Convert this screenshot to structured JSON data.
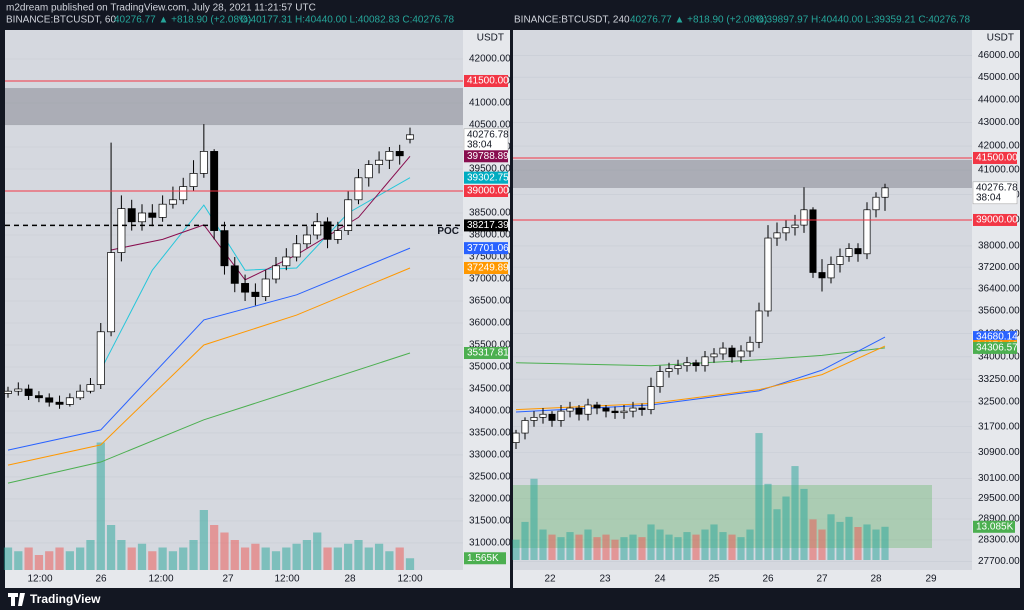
{
  "header": {
    "publisher": "m2dream published on TradingView.com, July 28, 2021 11:21:57 UTC"
  },
  "footer": {
    "brand": "TradingView"
  },
  "chart_data": [
    {
      "type": "candlestick",
      "title": "BINANCE:BTCUSDT, 60",
      "quote": "40276.77 ▲ +818.90 (+2.08%)",
      "ohlc": "O:40177.31 H:40440.00 L:40082.83 C:40276.78",
      "currency": "USDT",
      "log_scale": false,
      "ylim": [
        30386,
        42659
      ],
      "up_color": "#ffffff",
      "down_color": "#000000",
      "yticks": [
        {
          "value": 31000,
          "label": "31000.00"
        },
        {
          "value": 31500,
          "label": "31500.00"
        },
        {
          "value": 32000,
          "label": "32000.00"
        },
        {
          "value": 32500,
          "label": "32500.00"
        },
        {
          "value": 33000,
          "label": "33000.00"
        },
        {
          "value": 33500,
          "label": "33500.00"
        },
        {
          "value": 34000,
          "label": "34000.00"
        },
        {
          "value": 34500,
          "label": "34500.00"
        },
        {
          "value": 35000,
          "label": "35000.00"
        },
        {
          "value": 35500,
          "label": "35500.00"
        },
        {
          "value": 36000,
          "label": "36000.00"
        },
        {
          "value": 36500,
          "label": "36500.00"
        },
        {
          "value": 37000,
          "label": "37000.00"
        },
        {
          "value": 37500,
          "label": "37500.00"
        },
        {
          "value": 38000,
          "label": "38000.00"
        },
        {
          "value": 38500,
          "label": "38500.00"
        },
        {
          "value": 39000,
          "label": "39000.00"
        },
        {
          "value": 39500,
          "label": "39500.00"
        },
        {
          "value": 40000,
          "label": "40000.00"
        },
        {
          "value": 40500,
          "label": "40500.00"
        },
        {
          "value": 41000,
          "label": "41000.00"
        },
        {
          "value": 41500,
          "label": "41500.00"
        },
        {
          "value": 42000,
          "label": "42000.00"
        }
      ],
      "x_labels": [
        "12:00",
        "26",
        "12:00",
        "27",
        "12:00",
        "28",
        "12:00"
      ],
      "zone": [
        40500,
        41340
      ],
      "candles": {
        "open": [
          34400,
          34450,
          34500,
          34350,
          34300,
          34200,
          34150,
          34300,
          34450,
          34600,
          35800,
          37600,
          38600,
          38300,
          38500,
          38400,
          38700,
          38800,
          39100,
          39400,
          39900,
          38100,
          37300,
          36900,
          36700,
          36600,
          37000,
          37300,
          37500,
          37800,
          38000,
          38300,
          37900,
          38100,
          38800,
          39300,
          39600,
          39700,
          39900,
          40177.31
        ],
        "high": [
          34550,
          34650,
          34600,
          34450,
          34400,
          34350,
          34400,
          34600,
          34750,
          36000,
          40100,
          38900,
          38800,
          38700,
          38700,
          38900,
          39100,
          39300,
          39700,
          40520,
          39950,
          38300,
          37500,
          37100,
          36900,
          37200,
          37500,
          37700,
          38000,
          38200,
          38500,
          38400,
          38300,
          39000,
          39500,
          39700,
          39900,
          40000,
          40050,
          40440
        ],
        "low": [
          34300,
          34350,
          34250,
          34200,
          34100,
          34050,
          34100,
          34250,
          34400,
          34500,
          35700,
          37400,
          38100,
          38100,
          38200,
          38300,
          38600,
          38700,
          39000,
          39300,
          37900,
          37100,
          36700,
          36500,
          36400,
          36500,
          36900,
          37200,
          37400,
          37700,
          37900,
          37700,
          37800,
          38000,
          38700,
          39100,
          39400,
          39500,
          39600,
          40082.83
        ],
        "close": [
          34450,
          34500,
          34350,
          34300,
          34200,
          34150,
          34300,
          34450,
          34600,
          35800,
          37600,
          38600,
          38300,
          38500,
          38400,
          38700,
          38800,
          39100,
          39400,
          39900,
          38100,
          37300,
          36900,
          36700,
          36600,
          37000,
          37300,
          37500,
          37800,
          38000,
          38300,
          37900,
          38100,
          38800,
          39300,
          39600,
          39700,
          39900,
          39800,
          40276.78
        ]
      },
      "lines": [
        {
          "color": "#26c6da",
          "x": [
            9,
            14,
            19,
            23,
            28,
            33,
            39
          ],
          "values": [
            34930,
            37200,
            38680,
            37200,
            37250,
            38500,
            39303
          ]
        },
        {
          "color": "#880e4f",
          "x": [
            10,
            15,
            19,
            23,
            28,
            34,
            39
          ],
          "values": [
            37660,
            37900,
            38230,
            36980,
            37550,
            38400,
            39789
          ]
        },
        {
          "color": "#2962ff",
          "x": [
            0,
            9,
            19,
            28,
            39
          ],
          "values": [
            33110,
            33570,
            36070,
            36640,
            37701
          ]
        },
        {
          "color": "#ff9800",
          "x": [
            0,
            9,
            19,
            28,
            39
          ],
          "values": [
            32770,
            33230,
            35500,
            36180,
            37250
          ]
        },
        {
          "color": "#4caf50",
          "x": [
            0,
            9,
            19,
            28,
            39
          ],
          "values": [
            32360,
            32840,
            33800,
            34480,
            35318
          ]
        }
      ],
      "price_tags": [
        {
          "value": 41500,
          "label": "41500.00",
          "color": "#f23645",
          "line": "solid"
        },
        {
          "value": 40276.78,
          "label": "40276.78",
          "color": "#ffffff",
          "countdown": "38:04"
        },
        {
          "value": 39788.89,
          "label": "39788.89",
          "color": "#880e4f"
        },
        {
          "value": 39302.75,
          "label": "39302.75",
          "color": "#00acc1"
        },
        {
          "value": 39000,
          "label": "39000.00",
          "color": "#f23645",
          "line": "solid"
        },
        {
          "value": 38217.39,
          "label": "38217.39",
          "color": "#000000",
          "line": "dashed",
          "note": "POC"
        },
        {
          "value": 37701.06,
          "label": "37701.06",
          "color": "#2962ff"
        },
        {
          "value": 37249.89,
          "label": "37249.89",
          "color": "#ff9800"
        },
        {
          "value": 35317.81,
          "label": "35317.81",
          "color": "#4caf50"
        }
      ],
      "volume": {
        "ylim": [
          0,
          20
        ],
        "color": "#4caf50",
        "values": [
          3,
          2.5,
          3,
          2,
          2.5,
          3,
          2.5,
          3,
          4,
          17,
          6,
          4,
          3,
          3.5,
          2.5,
          3,
          2.5,
          3,
          4,
          8,
          6,
          5,
          4,
          3,
          3.5,
          3,
          2.5,
          3,
          3.5,
          4,
          5,
          3,
          3,
          3.5,
          4,
          3,
          3.5,
          2.5,
          3,
          1.565
        ],
        "value_labels": [
          null,
          null,
          null,
          null,
          null,
          null,
          null,
          null,
          null,
          null,
          null,
          null,
          null,
          null,
          null,
          null,
          null,
          null,
          null,
          null,
          null,
          null,
          null,
          null,
          null,
          null,
          null,
          null,
          null,
          null,
          null,
          null,
          null,
          null,
          null,
          null,
          null,
          null,
          null,
          "1.565K"
        ]
      }
    },
    {
      "type": "candlestick",
      "title": "BINANCE:BTCUSDT, 240",
      "quote": "40276.77 ▲ +818.90 (+2.08%)",
      "ohlc": "O:39897.97 H:40440.00 L:39359.21 C:40276.78",
      "currency": "USDT",
      "log_scale": true,
      "ylim": [
        27460,
        47180
      ],
      "up_color": "#ffffff",
      "down_color": "#000000",
      "yticks": [
        {
          "value": 46000,
          "label": "46000.00"
        },
        {
          "value": 45000,
          "label": "45000.00"
        },
        {
          "value": 44000,
          "label": "44000.00"
        },
        {
          "value": 43000,
          "label": "43000.00"
        },
        {
          "value": 42000,
          "label": "42000.00"
        },
        {
          "value": 41000,
          "label": "41000.00"
        },
        {
          "value": 40000,
          "label": "40000.00"
        },
        {
          "value": 39000,
          "label": "39000.00"
        },
        {
          "value": 38000,
          "label": "38000.00"
        },
        {
          "value": 37200,
          "label": "37200.00"
        },
        {
          "value": 36400,
          "label": "36400.00"
        },
        {
          "value": 35600,
          "label": "35600.00"
        },
        {
          "value": 34800,
          "label": "34800.00"
        },
        {
          "value": 34000,
          "label": "34000.00"
        },
        {
          "value": 33250,
          "label": "33250.00"
        },
        {
          "value": 32500,
          "label": "32500.00"
        },
        {
          "value": 31700,
          "label": "31700.00"
        },
        {
          "value": 30900,
          "label": "30900.00"
        },
        {
          "value": 30100,
          "label": "30100.00"
        },
        {
          "value": 29500,
          "label": "29500.00"
        },
        {
          "value": 28900,
          "label": "28900.00"
        },
        {
          "value": 28300,
          "label": "28300.00"
        },
        {
          "value": 27700,
          "label": "27700.00"
        }
      ],
      "x_labels": [
        "22",
        "23",
        "24",
        "25",
        "26",
        "27",
        "28",
        "29"
      ],
      "zone": [
        40270,
        41417
      ],
      "candles": {
        "open": [
          31200,
          31500,
          31900,
          32000,
          32100,
          31900,
          32200,
          32300,
          32100,
          32400,
          32300,
          32200,
          32150,
          32200,
          32300,
          32250,
          33000,
          33500,
          33600,
          33700,
          33800,
          33700,
          34000,
          34100,
          34300,
          34000,
          34200,
          34500,
          35600,
          38300,
          38500,
          38700,
          38800,
          39400,
          37000,
          36800,
          37300,
          37600,
          37900,
          37700,
          39400,
          39897.97
        ],
        "high": [
          31600,
          32000,
          32200,
          32300,
          32200,
          32400,
          32500,
          32400,
          32600,
          32500,
          32400,
          32350,
          32400,
          32500,
          32450,
          33300,
          33700,
          33800,
          33900,
          34000,
          33900,
          34200,
          34300,
          34500,
          34400,
          34400,
          34700,
          35900,
          38800,
          38900,
          39000,
          39200,
          40300,
          39500,
          37500,
          37600,
          37900,
          38100,
          38100,
          39700,
          40100,
          40440
        ],
        "low": [
          31000,
          31300,
          31700,
          31800,
          31700,
          31700,
          32000,
          31900,
          31900,
          32100,
          32000,
          31950,
          31950,
          32000,
          32050,
          32100,
          32800,
          33300,
          33400,
          33500,
          33500,
          33500,
          33800,
          33900,
          33800,
          33800,
          34000,
          34300,
          35400,
          38000,
          38200,
          38400,
          38500,
          36800,
          36300,
          36600,
          37000,
          37400,
          37400,
          37500,
          39100,
          39359.21
        ],
        "close": [
          31500,
          31900,
          32000,
          32100,
          31900,
          32200,
          32300,
          32100,
          32400,
          32300,
          32200,
          32150,
          32200,
          32300,
          32250,
          33000,
          33500,
          33600,
          33700,
          33800,
          33700,
          34000,
          34100,
          34300,
          34000,
          34200,
          34500,
          35600,
          38300,
          38500,
          38700,
          38800,
          39400,
          37000,
          36800,
          37300,
          37600,
          37900,
          37700,
          39400,
          39900,
          40276.78
        ]
      },
      "lines": [
        {
          "color": "#4caf50",
          "x": [
            0,
            15,
            27,
            34,
            41
          ],
          "values": [
            33800,
            33700,
            33900,
            34050,
            34307
          ]
        },
        {
          "color": "#2962ff",
          "x": [
            0,
            15,
            27,
            34,
            41
          ],
          "values": [
            32170,
            32400,
            32860,
            33550,
            34680
          ]
        },
        {
          "color": "#ff9800",
          "x": [
            0,
            15,
            27,
            34,
            41
          ],
          "values": [
            32250,
            32450,
            32900,
            33400,
            34370
          ]
        }
      ],
      "price_tags": [
        {
          "value": 41500,
          "label": "41500.00",
          "color": "#f23645",
          "line": "solid"
        },
        {
          "value": 40276.78,
          "label": "40276.78",
          "color": "#ffffff",
          "countdown": "38:04"
        },
        {
          "value": 39000,
          "label": "39000.00",
          "color": "#f23645",
          "line": "solid"
        },
        {
          "value": 34680.14,
          "label": "34680.14",
          "color": "#2962ff"
        },
        {
          "value": 34370.13,
          "label": "34370.13",
          "color": "#ff9800"
        },
        {
          "value": 34306.57,
          "label": "34306.57",
          "color": "#4caf50"
        }
      ],
      "volume": {
        "ylim": [
          0,
          65
        ],
        "color": "#4caf50",
        "values": [
          8,
          15,
          32,
          12,
          10,
          9,
          11,
          10,
          12,
          9,
          10,
          8,
          9,
          10,
          9,
          14,
          12,
          10,
          9,
          11,
          10,
          12,
          14,
          11,
          10,
          9,
          12,
          50,
          30,
          20,
          25,
          37,
          28,
          16,
          12,
          18,
          15,
          17,
          13,
          14,
          12,
          13.085
        ],
        "value_labels": [
          null,
          null,
          null,
          null,
          null,
          null,
          null,
          null,
          null,
          null,
          null,
          null,
          null,
          null,
          null,
          null,
          null,
          null,
          null,
          null,
          null,
          null,
          null,
          null,
          null,
          null,
          null,
          null,
          null,
          null,
          null,
          null,
          null,
          null,
          null,
          null,
          null,
          null,
          null,
          null,
          null,
          "13.085K"
        ]
      }
    }
  ]
}
